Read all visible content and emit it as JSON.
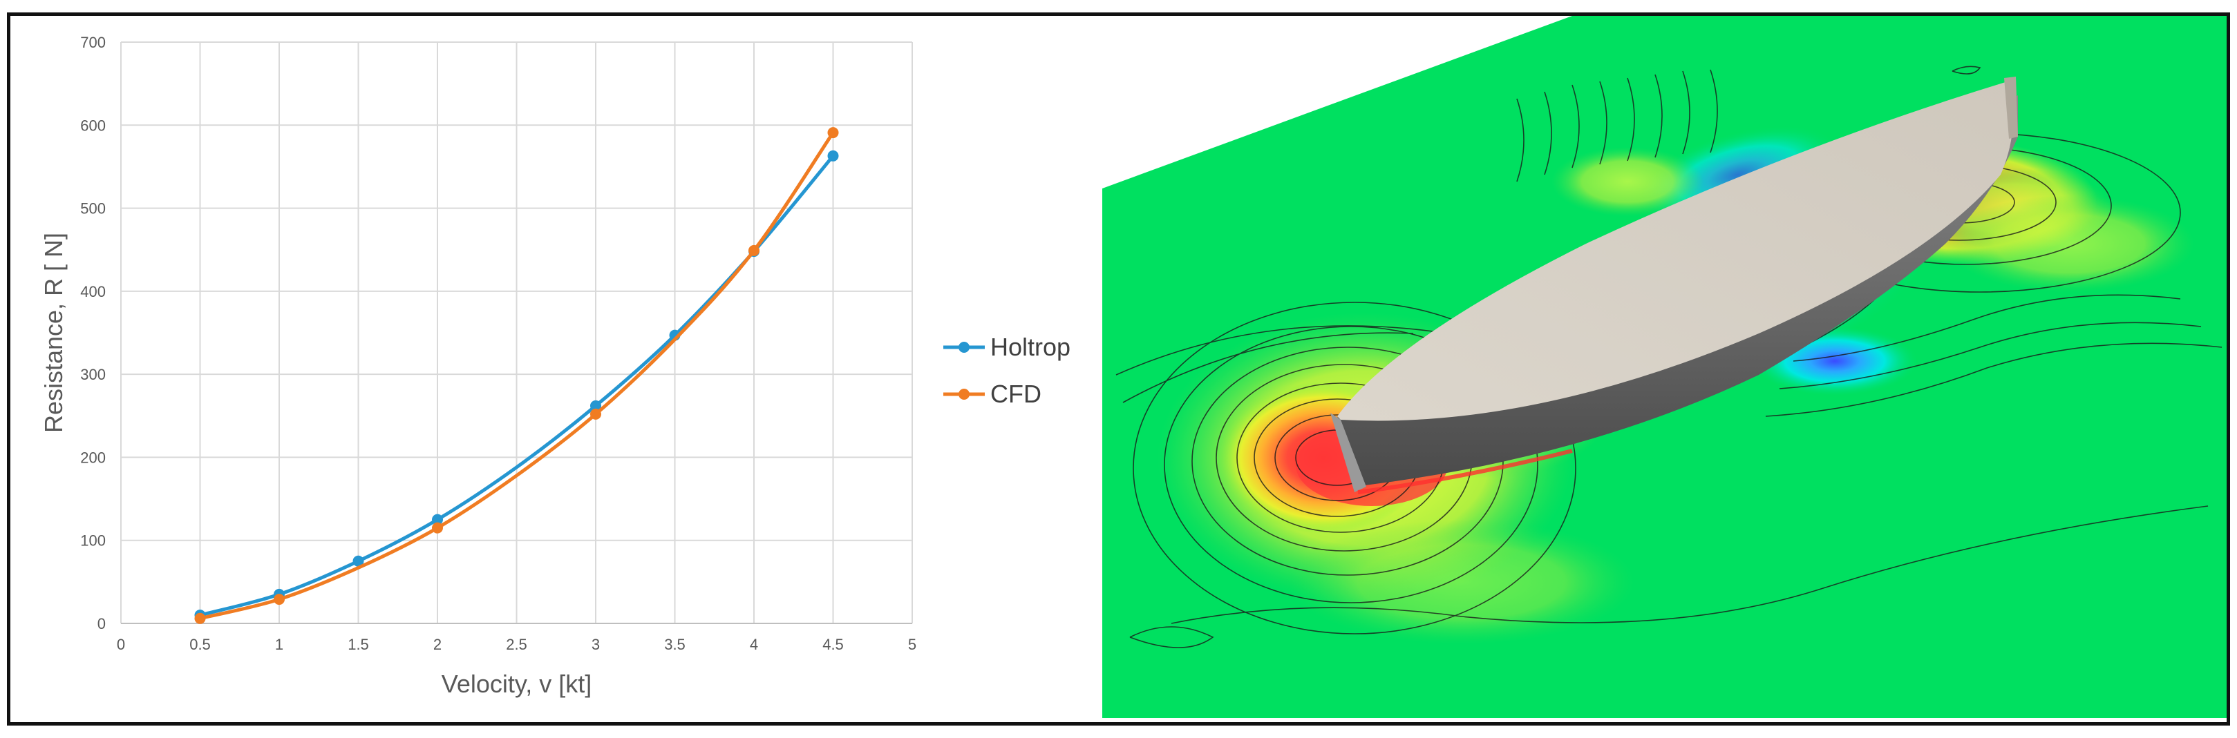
{
  "chart_data": {
    "type": "line",
    "title": "",
    "xlabel": "Velocity, v [kt]",
    "ylabel": "Resistance, R [ N]",
    "xlim": [
      0,
      5
    ],
    "ylim": [
      0,
      700
    ],
    "xticks": [
      "0",
      "0.5",
      "1",
      "1.5",
      "2",
      "2.5",
      "3",
      "3.5",
      "4",
      "4.5",
      "5"
    ],
    "yticks": [
      "0",
      "100",
      "200",
      "300",
      "400",
      "500",
      "600",
      "700"
    ],
    "grid": true,
    "legend": "right",
    "series": [
      {
        "name": "Holtrop",
        "color": "#2596d1",
        "x": [
          0.5,
          1,
          1.5,
          2,
          3,
          3.5,
          4,
          4.5
        ],
        "y": [
          10,
          35,
          75,
          125,
          262,
          347,
          448,
          563
        ],
        "smooth_x": [
          0.5,
          1,
          1.5,
          2,
          2.5,
          3,
          3.5,
          4,
          4.5
        ],
        "smooth_y": [
          10,
          35,
          75,
          125,
          188,
          262,
          347,
          448,
          563
        ]
      },
      {
        "name": "CFD",
        "color": "#f07c22",
        "x": [
          0.5,
          1,
          2,
          3,
          4,
          4.5
        ],
        "y": [
          6,
          29,
          115,
          252,
          449,
          591
        ],
        "smooth_x": [
          0.5,
          1,
          1.5,
          2,
          2.5,
          3,
          3.5,
          4,
          4.5
        ],
        "smooth_y": [
          6,
          29,
          67,
          115,
          178,
          252,
          342,
          449,
          591
        ]
      }
    ]
  },
  "render": {
    "contour_colormap": "rainbow (blue-cyan-green-yellow-red)",
    "background_color": "#00e060",
    "hull_color": "#d6d0c6"
  }
}
